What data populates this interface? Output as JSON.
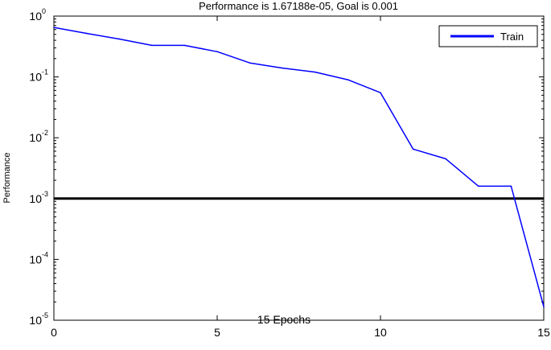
{
  "chart_data": {
    "type": "line",
    "title": "Performance is 1.67188e-05, Goal is 0.001",
    "xlabel": "",
    "ylabel": "Performance",
    "xlim": [
      0,
      15
    ],
    "ylim": [
      1e-05,
      1
    ],
    "yscale": "log",
    "x_ticks": [
      "0",
      "5",
      "10",
      "15"
    ],
    "y_ticks": [
      {
        "base": "10",
        "exp": "0"
      },
      {
        "base": "10",
        "exp": "-1"
      },
      {
        "base": "10",
        "exp": "-2"
      },
      {
        "base": "10",
        "exp": "-3"
      },
      {
        "base": "10",
        "exp": "-4"
      },
      {
        "base": "10",
        "exp": "-5"
      }
    ],
    "legend": {
      "placement": "top-right",
      "entries": [
        "Train"
      ]
    },
    "annotation": "15 Epochs",
    "grid": false,
    "series": [
      {
        "name": "Train",
        "color": "#0000ff",
        "x": [
          0,
          1,
          2,
          3,
          4,
          5,
          6,
          7,
          8,
          9,
          10,
          11,
          12,
          13,
          14,
          15
        ],
        "values": [
          0.65,
          0.52,
          0.42,
          0.33,
          0.33,
          0.26,
          0.17,
          0.14,
          0.12,
          0.09,
          0.055,
          0.0065,
          0.0045,
          0.0016,
          0.0016,
          1.67e-05
        ]
      }
    ],
    "goal": {
      "value": 0.001,
      "color": "#000000"
    }
  }
}
